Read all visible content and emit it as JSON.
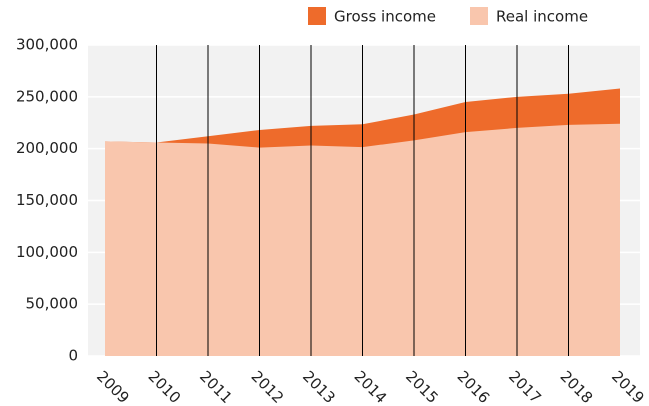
{
  "chart_data": {
    "type": "area",
    "categories": [
      "2009",
      "2010",
      "2011",
      "2012",
      "2013",
      "2014",
      "2015",
      "2016",
      "2017",
      "2018",
      "2019"
    ],
    "series": [
      {
        "name": "Gross income",
        "color": "#ee6b2b",
        "values": [
          207000,
          206000,
          212000,
          218000,
          222000,
          223500,
          233000,
          245000,
          250000,
          253000,
          258000
        ]
      },
      {
        "name": "Real income",
        "color": "#f9c6ad",
        "values": [
          207000,
          206000,
          205000,
          201000,
          203000,
          201500,
          208000,
          216000,
          220000,
          223000,
          224000
        ]
      }
    ],
    "ylim": [
      0,
      300000
    ],
    "yticks": [
      0,
      {
        "value": 50000,
        "label": "50,000"
      },
      {
        "value": 100000,
        "label": "100,000"
      },
      {
        "value": 150000,
        "label": "150,000"
      },
      {
        "value": 200000,
        "label": "200,000"
      },
      {
        "value": 250000,
        "label": "250,000"
      },
      {
        "value": 300000,
        "label": "300,000"
      }
    ],
    "grid": true,
    "legend": "top",
    "plot_background": "#f2f2f2",
    "category_lines": true
  }
}
